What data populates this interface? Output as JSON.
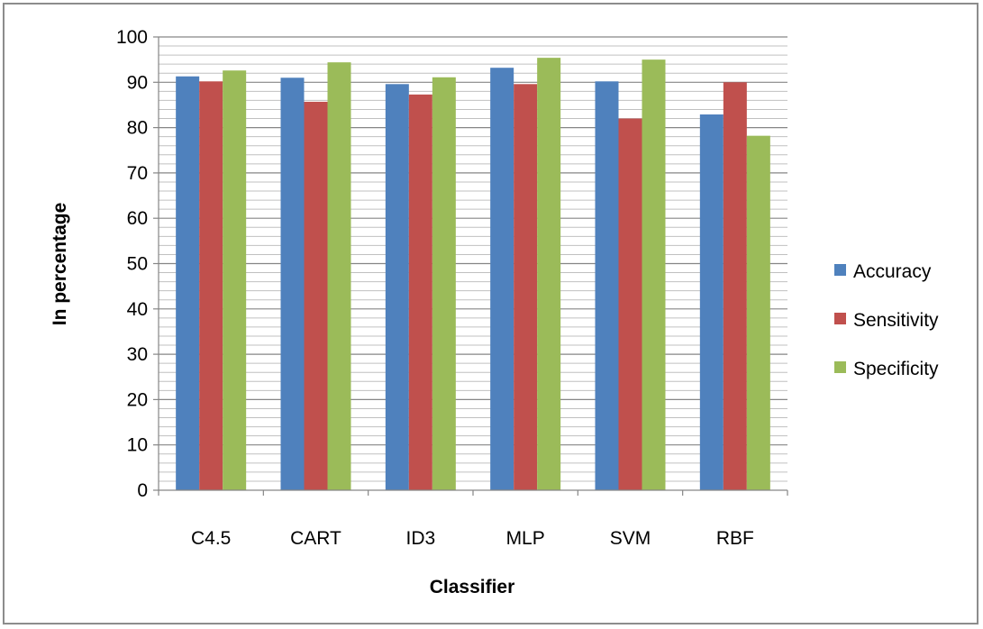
{
  "chart_data": {
    "type": "bar",
    "title": "",
    "xlabel": "Classifier",
    "ylabel": "In percentage",
    "categories": [
      "C4.5",
      "CART",
      "ID3",
      "MLP",
      "SVM",
      "RBF"
    ],
    "series": [
      {
        "name": "Accuracy",
        "color": "#4f81bd",
        "values": [
          91.3,
          91.0,
          89.6,
          93.2,
          90.2,
          82.9
        ]
      },
      {
        "name": "Sensitivity",
        "color": "#c0504d",
        "values": [
          90.2,
          85.7,
          87.3,
          89.6,
          82.0,
          90.0
        ]
      },
      {
        "name": "Specificity",
        "color": "#9bbb59",
        "values": [
          92.6,
          94.4,
          91.1,
          95.4,
          95.0,
          78.2
        ]
      }
    ],
    "ylim": [
      0,
      100
    ],
    "ytick_labels": [
      "0",
      "10",
      "20",
      "30",
      "40",
      "50",
      "60",
      "70",
      "80",
      "90",
      "100"
    ],
    "minor_gridlines": true,
    "grid": true,
    "legend_position": "right"
  }
}
